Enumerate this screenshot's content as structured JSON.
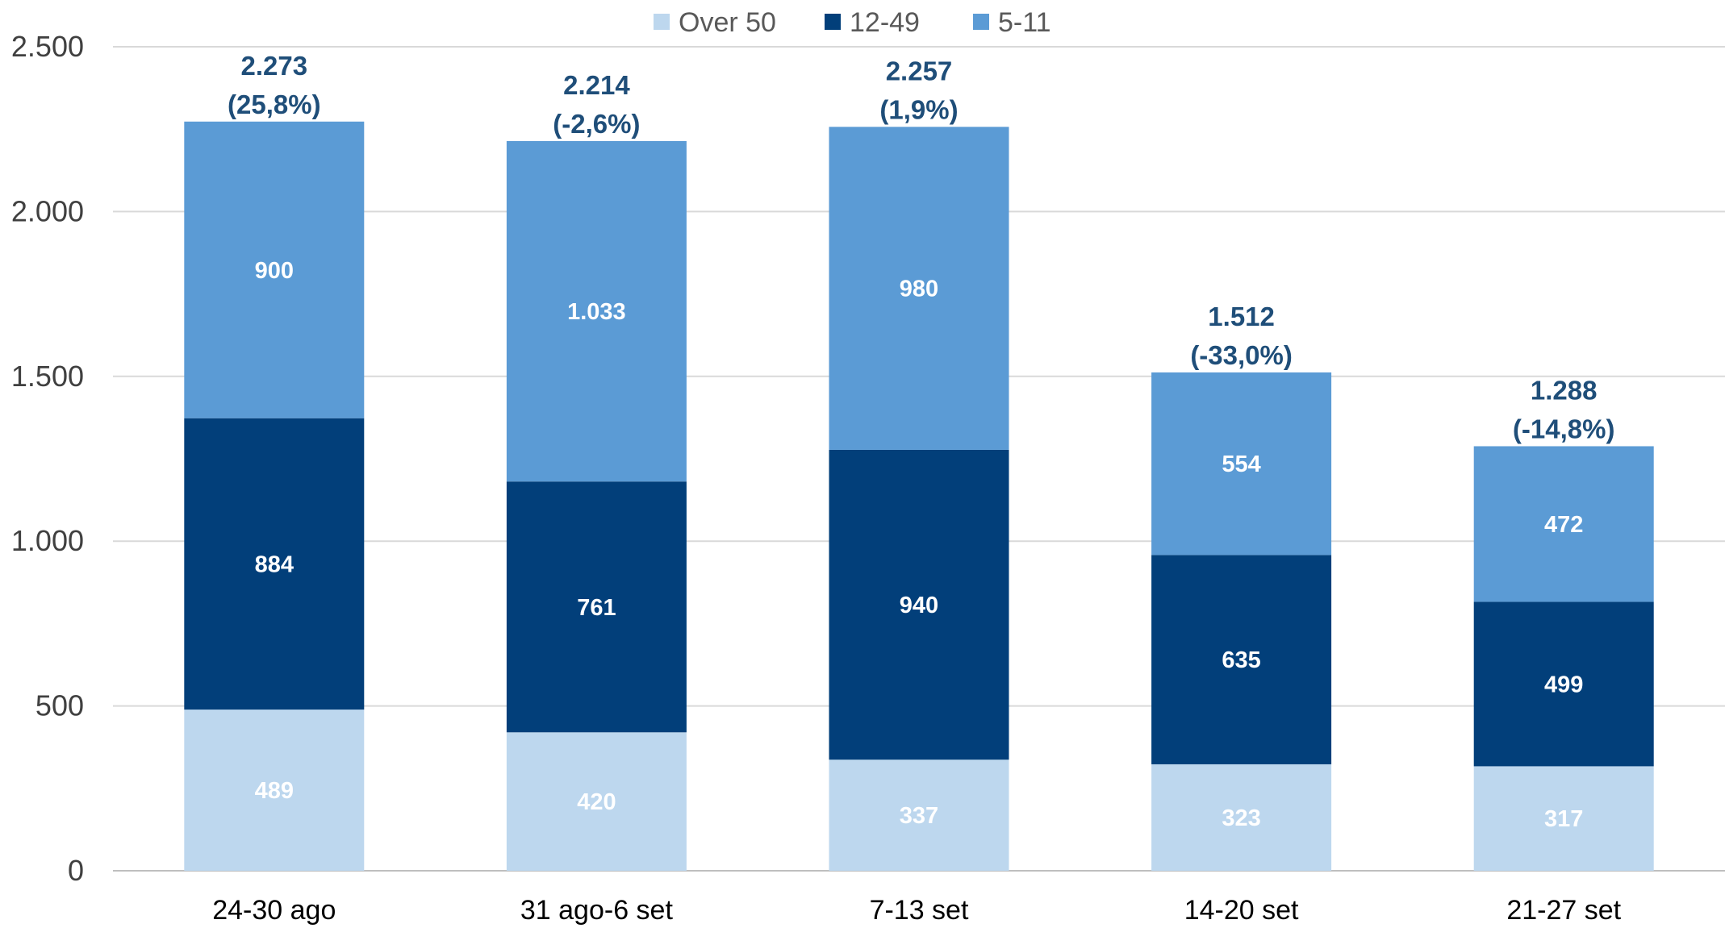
{
  "chart_data": {
    "type": "bar",
    "stacked": true,
    "categories": [
      "24-30 ago",
      "31 ago-6 set",
      "7-13 set",
      "14-20 set",
      "21-27 set"
    ],
    "series": [
      {
        "name": "Over 50",
        "values": [
          489,
          420,
          337,
          323,
          317
        ],
        "labels": [
          "489",
          "420",
          "337",
          "323",
          "317"
        ],
        "color": "#bdd7ee"
      },
      {
        "name": "12-49",
        "values": [
          884,
          761,
          940,
          635,
          499
        ],
        "labels": [
          "884",
          "761",
          "940",
          "635",
          "499"
        ],
        "color": "#023f7a"
      },
      {
        "name": "5-11",
        "values": [
          900,
          1033,
          980,
          554,
          472
        ],
        "labels": [
          "900",
          "1.033",
          "980",
          "554",
          "472"
        ],
        "color": "#5b9bd5"
      }
    ],
    "totals": [
      {
        "value": 2273,
        "label": "2.273",
        "change": "(25,8%)"
      },
      {
        "value": 2214,
        "label": "2.214",
        "change": "(-2,6%)"
      },
      {
        "value": 2257,
        "label": "2.257",
        "change": "(1,9%)"
      },
      {
        "value": 1512,
        "label": "1.512",
        "change": "(-33,0%)"
      },
      {
        "value": 1288,
        "label": "1.288",
        "change": "(-14,8%)"
      }
    ],
    "legend_order": [
      "Over 50",
      "12-49",
      "5-11"
    ],
    "yticks": [
      0,
      500,
      1000,
      1500,
      2000,
      2500
    ],
    "ytick_labels": [
      "0",
      "500",
      "1.000",
      "1.500",
      "2.000",
      "2.500"
    ],
    "ylim": [
      0,
      2500
    ],
    "grid": true,
    "legend_position": "top-center",
    "title": "",
    "xlabel": "",
    "ylabel": ""
  }
}
